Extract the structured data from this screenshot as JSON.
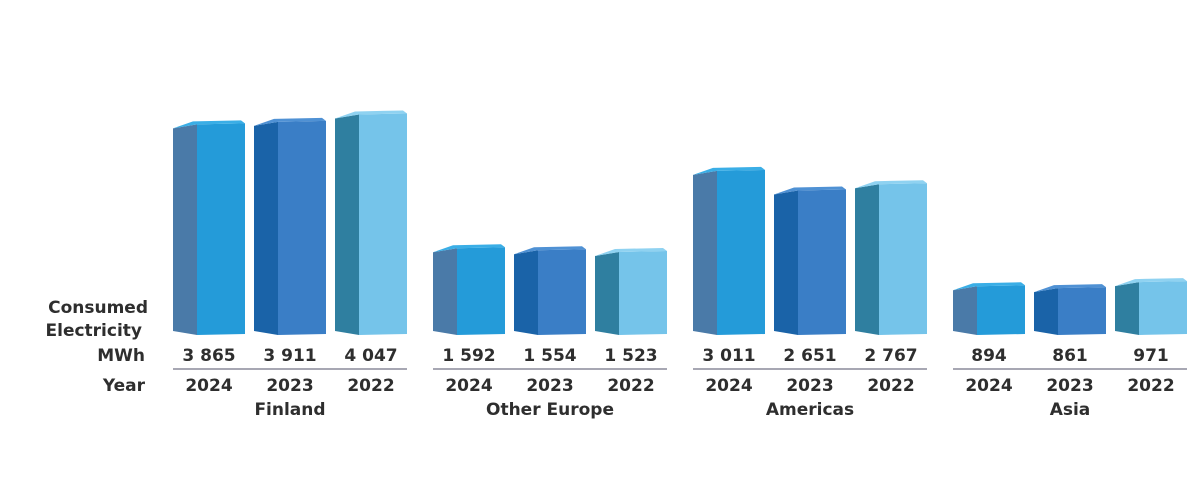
{
  "chart_data": {
    "type": "bar",
    "row_labels": {
      "metric": [
        "Consumed",
        "Electricity"
      ],
      "unit": "MWh",
      "year": "Year"
    },
    "groups": [
      {
        "name": "Finland",
        "bars": [
          {
            "year": "2024",
            "value": 3865,
            "label": "3 865"
          },
          {
            "year": "2023",
            "value": 3911,
            "label": "3 911"
          },
          {
            "year": "2022",
            "value": 4047,
            "label": "4 047"
          }
        ]
      },
      {
        "name": "Other Europe",
        "bars": [
          {
            "year": "2024",
            "value": 1592,
            "label": "1 592"
          },
          {
            "year": "2023",
            "value": 1554,
            "label": "1 554"
          },
          {
            "year": "2022",
            "value": 1523,
            "label": "1 523"
          }
        ]
      },
      {
        "name": "Americas",
        "bars": [
          {
            "year": "2024",
            "value": 3011,
            "label": "3 011"
          },
          {
            "year": "2023",
            "value": 2651,
            "label": "2 651"
          },
          {
            "year": "2022",
            "value": 2767,
            "label": "2 767"
          }
        ]
      },
      {
        "name": "Asia",
        "bars": [
          {
            "year": "2024",
            "value": 894,
            "label": "894"
          },
          {
            "year": "2023",
            "value": 861,
            "label": "861"
          },
          {
            "year": "2022",
            "value": 971,
            "label": "971"
          }
        ]
      }
    ],
    "colors": {
      "2024": {
        "front": "#249bd9",
        "side": "#4a7aa8",
        "top": "#3aaee6"
      },
      "2023": {
        "front": "#3a7ec6",
        "side": "#1a63a8",
        "top": "#4f91d4"
      },
      "2022": {
        "front": "#75c4ea",
        "side": "#2f7fa0",
        "top": "#8fd2f1"
      }
    },
    "divider_color": "#8a8a9a"
  }
}
